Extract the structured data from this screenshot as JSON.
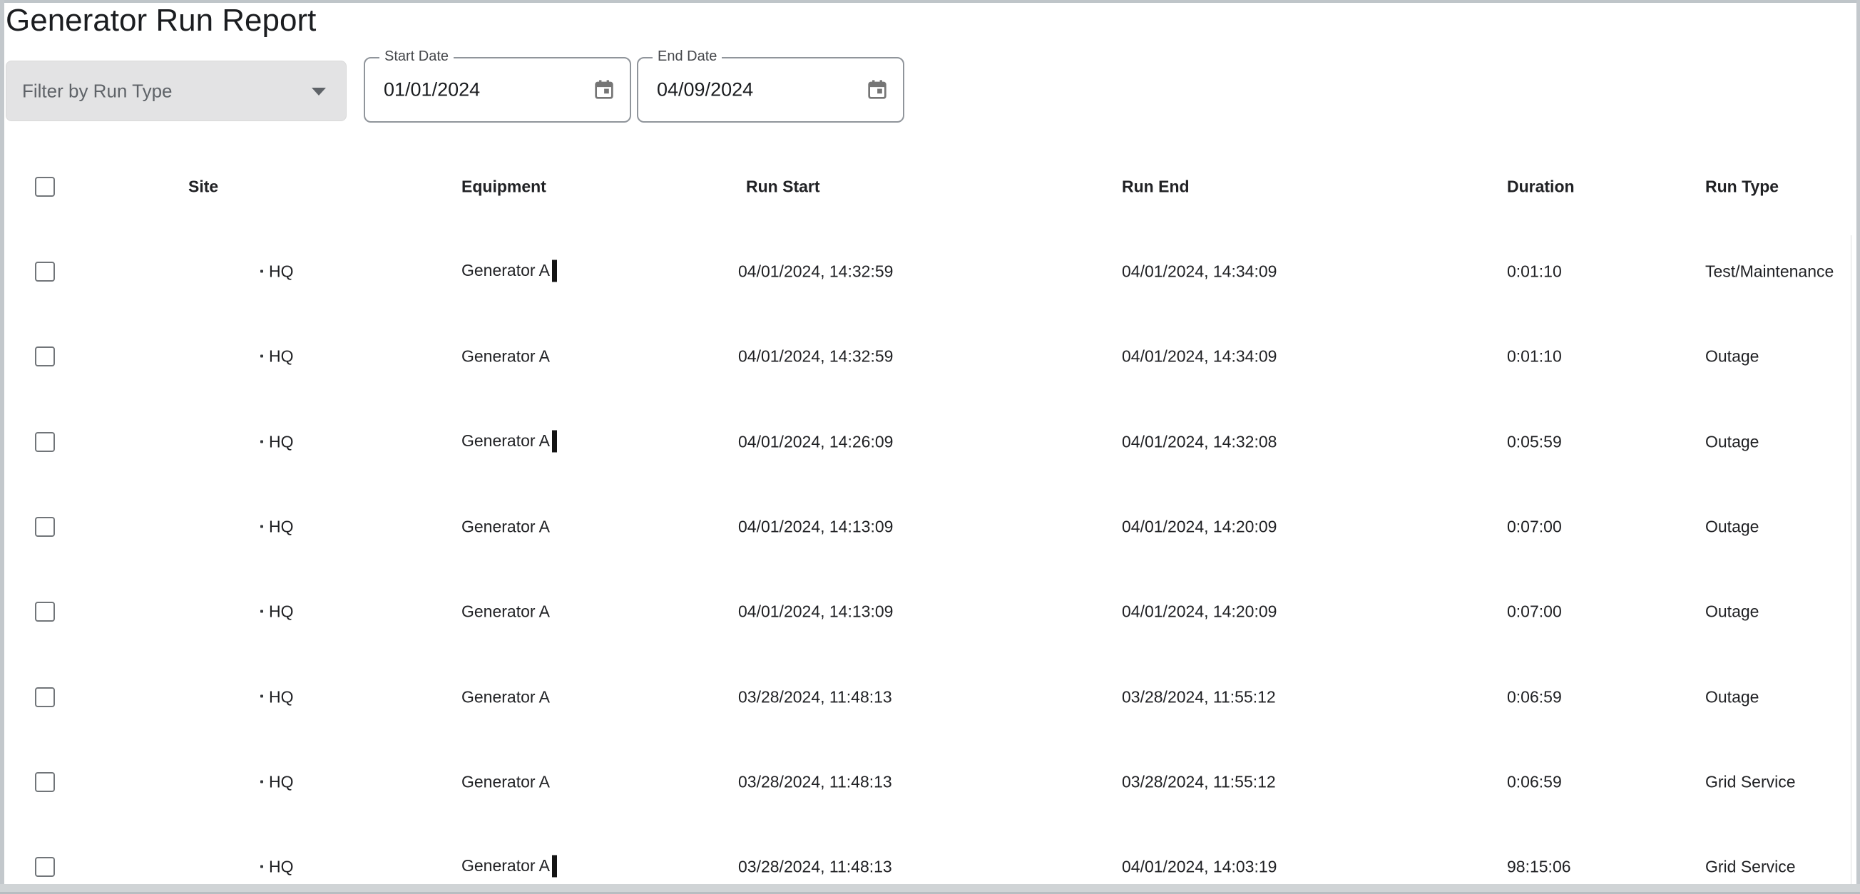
{
  "title": "Generator Run Report",
  "filters": {
    "run_type_label": "Filter by Run Type",
    "start_date": {
      "label": "Start Date",
      "value": "01/01/2024"
    },
    "end_date": {
      "label": "End Date",
      "value": "04/09/2024"
    }
  },
  "icons": {
    "run_type_dropdown": "chevron-down-icon",
    "date_pickers": "calendar-icon"
  },
  "colors": {
    "field_fill": "#e3e3e4",
    "field_outline": "#90959b",
    "icon_gray": "#757575",
    "text_primary": "#202124",
    "text_secondary": "#5f6368",
    "frame_gray": "#c3c8cc"
  },
  "table": {
    "site_marker": "·",
    "headers": {
      "site": "Site",
      "equipment": "Equipment",
      "run_start": "Run Start",
      "run_end": "Run End",
      "duration": "Duration",
      "run_type": "Run Type"
    },
    "rows": [
      {
        "site": "HQ",
        "equipment": "Generator A",
        "equipment_cursor": true,
        "run_start": "04/01/2024, 14:32:59",
        "run_end": "04/01/2024, 14:34:09",
        "duration": "0:01:10",
        "run_type": "Test/Maintenance"
      },
      {
        "site": "HQ",
        "equipment": "Generator A",
        "equipment_cursor": false,
        "run_start": "04/01/2024, 14:32:59",
        "run_end": "04/01/2024, 14:34:09",
        "duration": "0:01:10",
        "run_type": "Outage"
      },
      {
        "site": "HQ",
        "equipment": "Generator A",
        "equipment_cursor": true,
        "run_start": "04/01/2024, 14:26:09",
        "run_end": "04/01/2024, 14:32:08",
        "duration": "0:05:59",
        "run_type": "Outage"
      },
      {
        "site": "HQ",
        "equipment": "Generator A",
        "equipment_cursor": false,
        "run_start": "04/01/2024, 14:13:09",
        "run_end": "04/01/2024, 14:20:09",
        "duration": "0:07:00",
        "run_type": "Outage"
      },
      {
        "site": "HQ",
        "equipment": "Generator A",
        "equipment_cursor": false,
        "run_start": "04/01/2024, 14:13:09",
        "run_end": "04/01/2024, 14:20:09",
        "duration": "0:07:00",
        "run_type": "Outage"
      },
      {
        "site": "HQ",
        "equipment": "Generator A",
        "equipment_cursor": false,
        "run_start": "03/28/2024, 11:48:13",
        "run_end": "03/28/2024, 11:55:12",
        "duration": "0:06:59",
        "run_type": "Outage"
      },
      {
        "site": "HQ",
        "equipment": "Generator A",
        "equipment_cursor": false,
        "run_start": "03/28/2024, 11:48:13",
        "run_end": "03/28/2024, 11:55:12",
        "duration": "0:06:59",
        "run_type": "Grid Service"
      },
      {
        "site": "HQ",
        "equipment": "Generator A",
        "equipment_cursor": true,
        "run_start": "03/28/2024, 11:48:13",
        "run_end": "04/01/2024, 14:03:19",
        "duration": "98:15:06",
        "run_type": "Grid Service"
      }
    ]
  }
}
